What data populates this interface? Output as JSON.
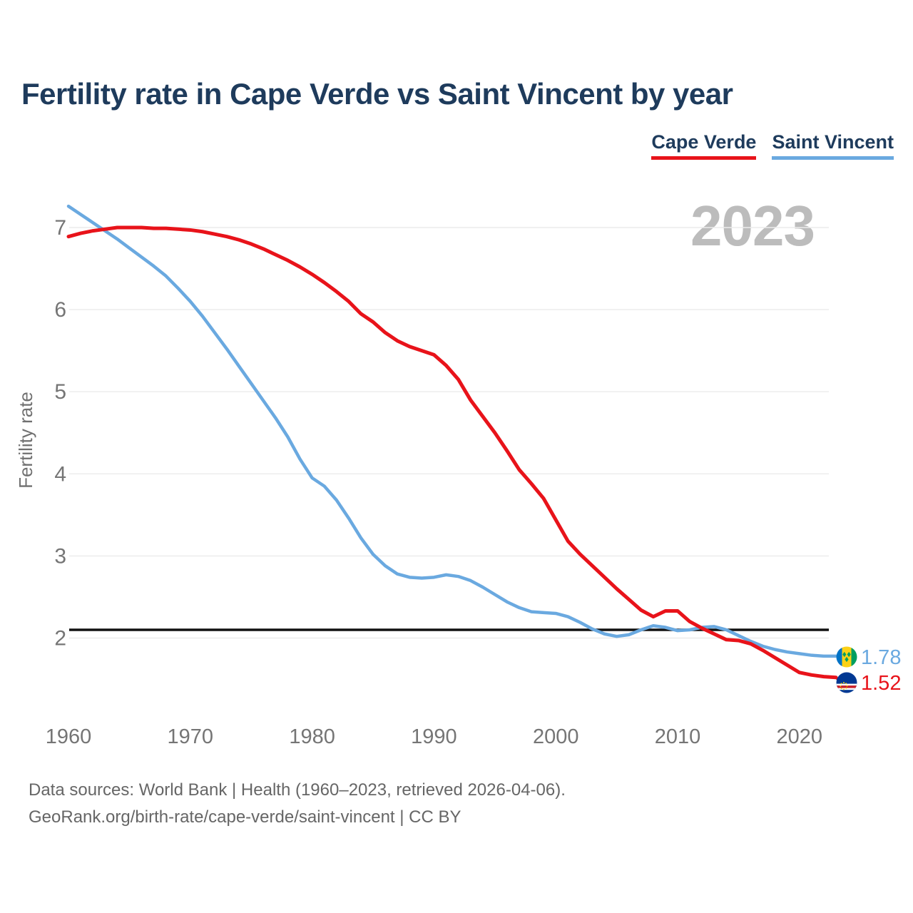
{
  "header": {
    "title": "Fertility rate in Cape Verde vs Saint Vincent by year"
  },
  "legend": {
    "items": [
      {
        "label": "Cape Verde",
        "color": "#e8131a"
      },
      {
        "label": "Saint Vincent",
        "color": "#6aa9e0"
      }
    ]
  },
  "watermark": "2023",
  "chart_data": {
    "type": "line",
    "title": "Fertility rate in Cape Verde vs Saint Vincent by year",
    "xlabel": "",
    "ylabel": "Fertility rate",
    "grid": true,
    "xlim": [
      1960,
      2023
    ],
    "ylim": [
      1.3,
      7.45
    ],
    "x_ticks": [
      1960,
      1970,
      1980,
      1990,
      2000,
      2010,
      2020
    ],
    "y_ticks": [
      2,
      3,
      4,
      5,
      6,
      7
    ],
    "reference_line": {
      "value": 2.1,
      "color": "#111111"
    },
    "x": [
      1960,
      1961,
      1962,
      1963,
      1964,
      1965,
      1966,
      1967,
      1968,
      1969,
      1970,
      1971,
      1972,
      1973,
      1974,
      1975,
      1976,
      1977,
      1978,
      1979,
      1980,
      1981,
      1982,
      1983,
      1984,
      1985,
      1986,
      1987,
      1988,
      1989,
      1990,
      1991,
      1992,
      1993,
      1994,
      1995,
      1996,
      1997,
      1998,
      1999,
      2000,
      2001,
      2002,
      2003,
      2004,
      2005,
      2006,
      2007,
      2008,
      2009,
      2010,
      2011,
      2012,
      2013,
      2014,
      2015,
      2016,
      2017,
      2018,
      2019,
      2020,
      2021,
      2022,
      2023
    ],
    "series": [
      {
        "name": "Cape Verde",
        "color": "#e8131a",
        "end_label": "1.52",
        "values": [
          6.89,
          6.93,
          6.96,
          6.98,
          7.0,
          7.0,
          7.0,
          6.99,
          6.99,
          6.98,
          6.97,
          6.95,
          6.92,
          6.89,
          6.85,
          6.8,
          6.74,
          6.67,
          6.6,
          6.52,
          6.43,
          6.33,
          6.22,
          6.1,
          5.95,
          5.85,
          5.72,
          5.62,
          5.55,
          5.5,
          5.45,
          5.32,
          5.15,
          4.9,
          4.7,
          4.5,
          4.28,
          4.05,
          3.88,
          3.7,
          3.44,
          3.18,
          3.02,
          2.88,
          2.74,
          2.6,
          2.47,
          2.34,
          2.26,
          2.33,
          2.33,
          2.2,
          2.12,
          2.05,
          1.98,
          1.97,
          1.93,
          1.85,
          1.76,
          1.67,
          1.58,
          1.55,
          1.53,
          1.52
        ]
      },
      {
        "name": "Saint Vincent",
        "color": "#6aa9e0",
        "end_label": "1.78",
        "values": [
          7.26,
          7.16,
          7.06,
          6.96,
          6.86,
          6.75,
          6.64,
          6.53,
          6.41,
          6.26,
          6.1,
          5.92,
          5.72,
          5.52,
          5.31,
          5.1,
          4.89,
          4.68,
          4.45,
          4.18,
          3.95,
          3.85,
          3.68,
          3.46,
          3.22,
          3.02,
          2.88,
          2.78,
          2.74,
          2.73,
          2.74,
          2.77,
          2.75,
          2.7,
          2.62,
          2.53,
          2.44,
          2.37,
          2.32,
          2.31,
          2.3,
          2.26,
          2.19,
          2.11,
          2.05,
          2.02,
          2.04,
          2.1,
          2.15,
          2.13,
          2.09,
          2.1,
          2.13,
          2.14,
          2.1,
          2.03,
          1.96,
          1.9,
          1.86,
          1.83,
          1.81,
          1.79,
          1.78,
          1.78
        ]
      }
    ]
  },
  "footer": {
    "line1": "Data sources: World Bank | Health (1960–2023, retrieved 2026-04-06).",
    "line2": "GeoRank.org/birth-rate/cape-verde/saint-vincent | CC BY"
  }
}
